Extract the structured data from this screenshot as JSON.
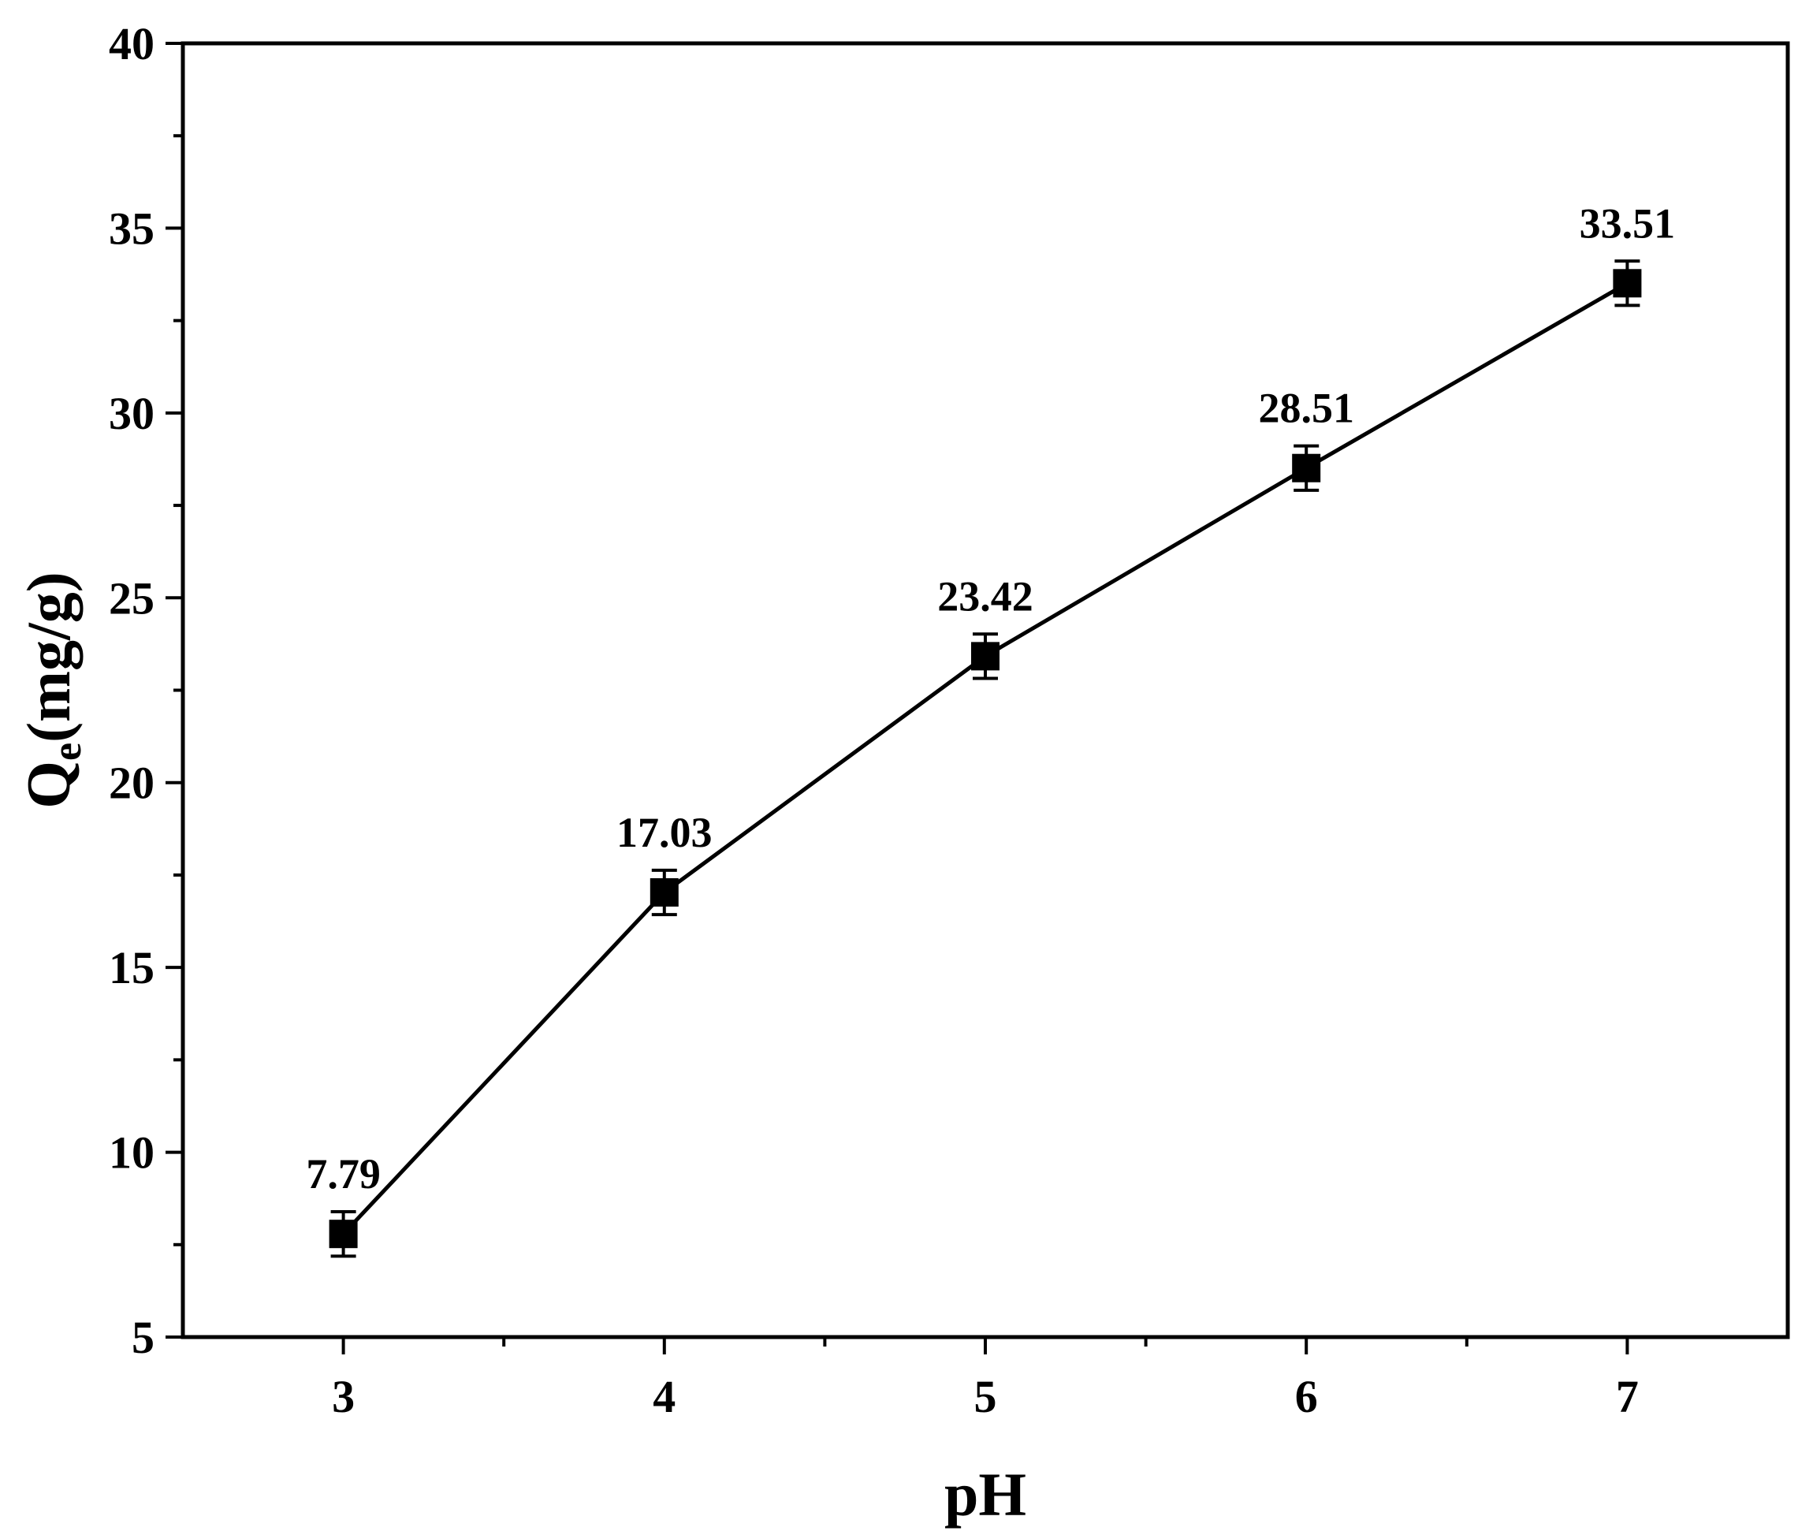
{
  "chart_data": {
    "type": "line",
    "title": "",
    "xlabel": "pH",
    "ylabel": "Qe(mg/g)",
    "ylabel_parts": {
      "main": "Q",
      "subscript": "e",
      "rest": "(mg/g)"
    },
    "xlim": [
      2.5,
      7.5
    ],
    "ylim": [
      5,
      40
    ],
    "xticks": [
      3,
      4,
      5,
      6,
      7
    ],
    "xtick_labels": [
      "3",
      "4",
      "5",
      "6",
      "7"
    ],
    "yticks": [
      5,
      10,
      15,
      20,
      25,
      30,
      35,
      40
    ],
    "ytick_labels": [
      "5",
      "10",
      "15",
      "20",
      "25",
      "30",
      "35",
      "40"
    ],
    "grid": false,
    "legend": "none",
    "series": [
      {
        "x": [
          3,
          4,
          5,
          6,
          7
        ],
        "values": [
          7.79,
          17.03,
          23.42,
          28.51,
          33.51
        ],
        "error": [
          0.6,
          0.6,
          0.6,
          0.6,
          0.6
        ],
        "marker": "square",
        "color": "#000000"
      }
    ],
    "data_labels": [
      "7.79",
      "17.03",
      "23.42",
      "28.51",
      "33.51"
    ]
  }
}
